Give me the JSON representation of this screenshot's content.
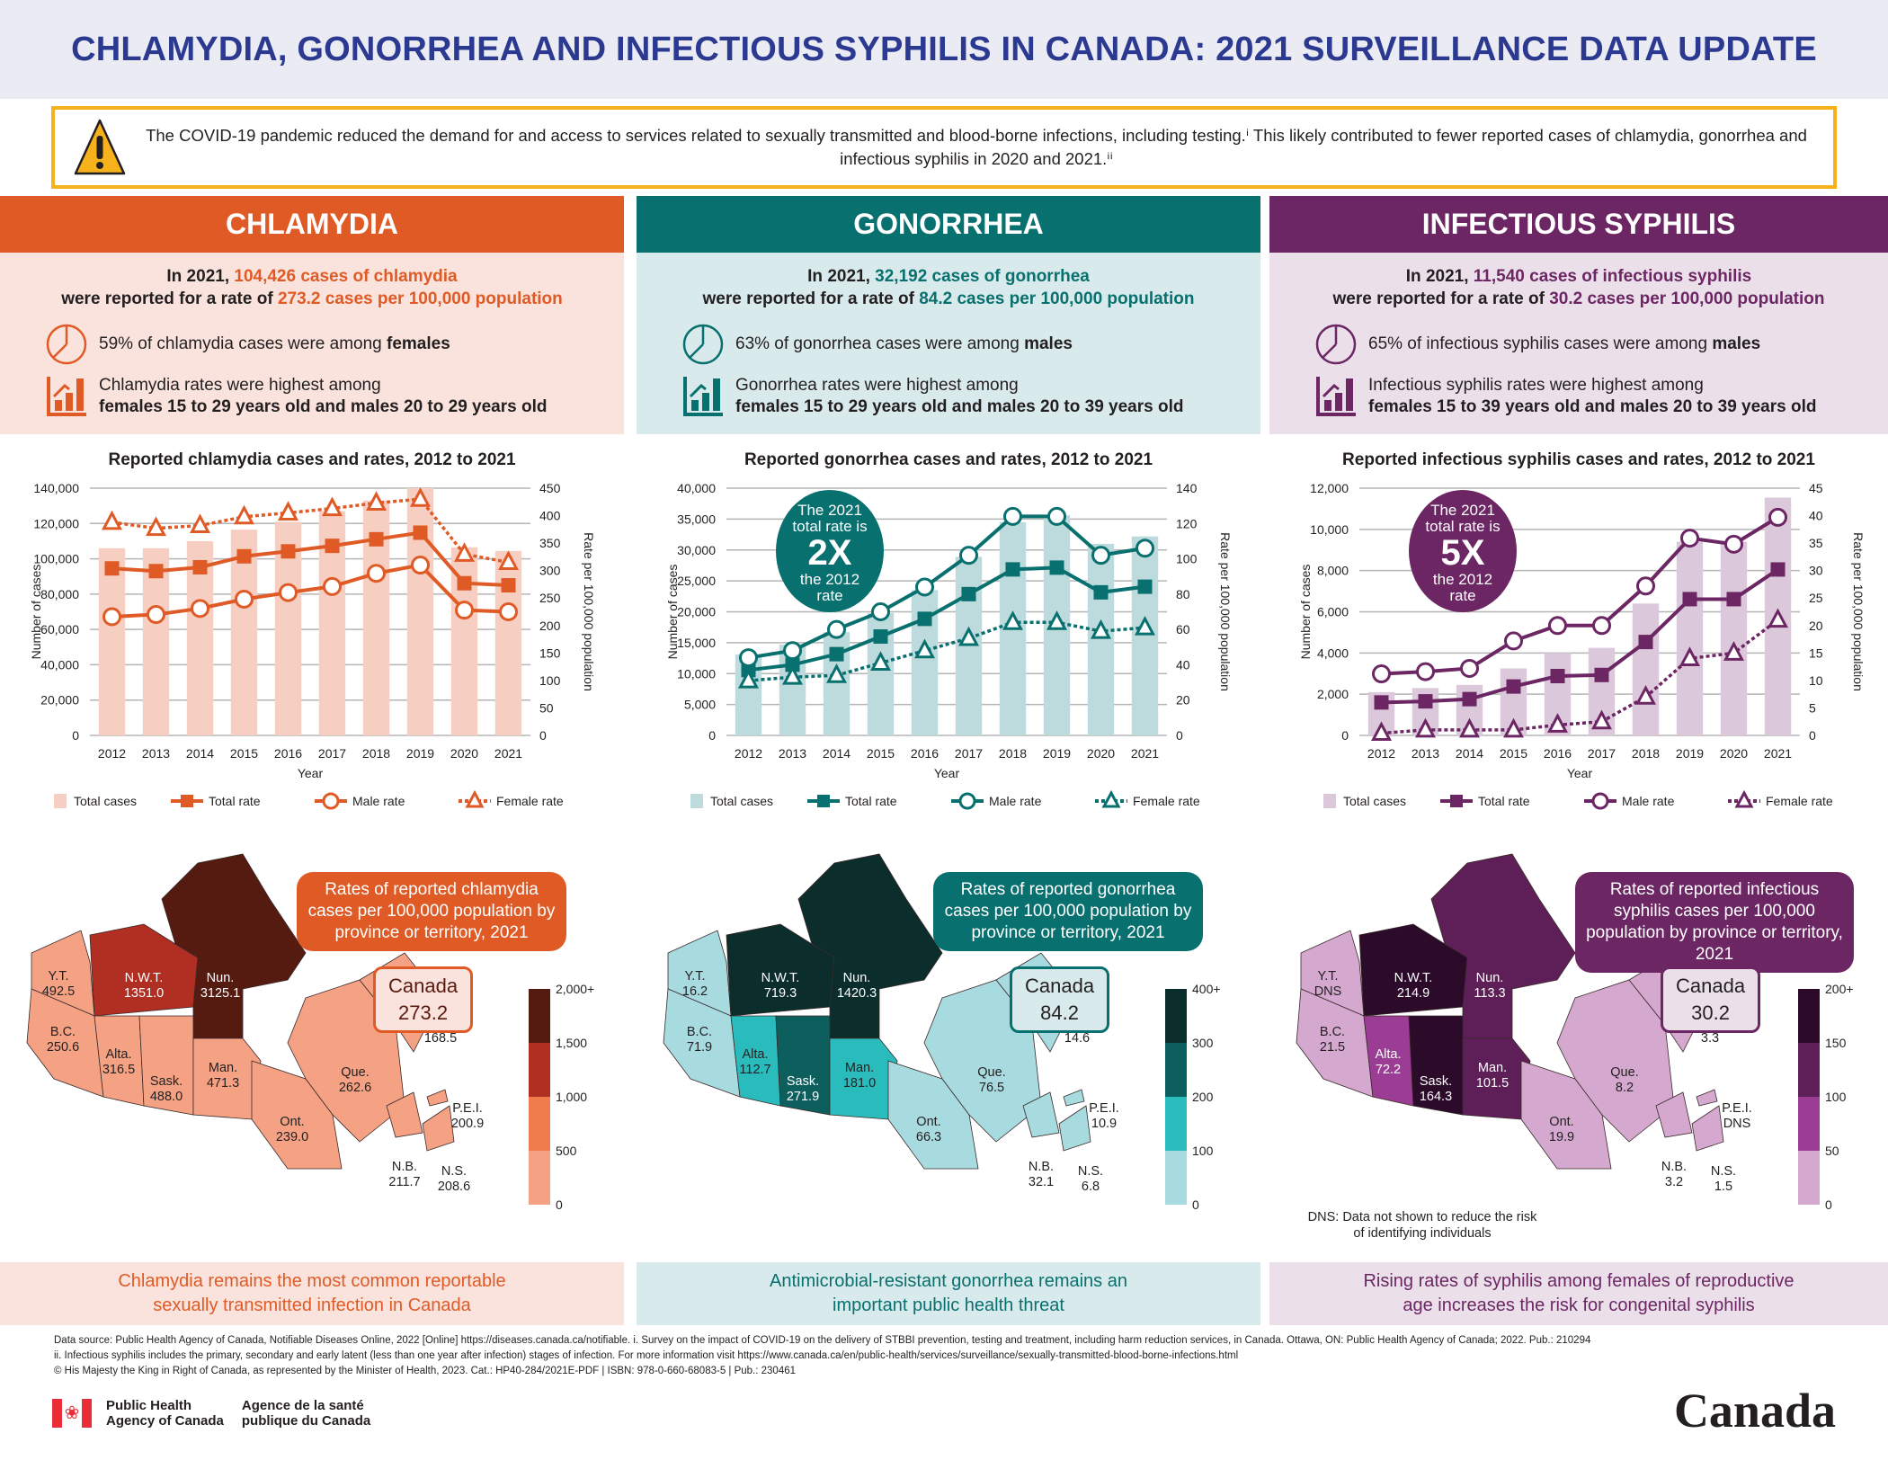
{
  "title": "CHLAMYDIA, GONORRHEA AND INFECTIOUS SYPHILIS IN CANADA: 2021 SURVEILLANCE DATA UPDATE",
  "alert": {
    "icon": "warning-triangle-icon",
    "text": "The COVID-19 pandemic reduced the demand for and access to services related to sexually transmitted and blood-borne infections, including testing.ⁱ This likely contributed to fewer reported cases of chlamydia, gonorrhea and infectious syphilis in 2020 and 2021.ⁱⁱ"
  },
  "colors": {
    "chlamydia": {
      "main": "#e05a26",
      "light": "#f9e3dc",
      "bar": "#f6cfc2",
      "text": "#e05a26"
    },
    "gonorrhea": {
      "main": "#08706f",
      "light": "#d8eaeb",
      "bar": "#bddadd",
      "text": "#08706f"
    },
    "syphilis": {
      "main": "#6b2663",
      "light": "#ebe0ea",
      "bar": "#dcc8db",
      "text": "#6b2663"
    }
  },
  "panels": [
    {
      "key": "chlamydia",
      "header": "CHLAMYDIA",
      "lead_1_pre": "In 2021, ",
      "lead_1_hl": "104,426 cases of chlamydia",
      "lead_2_pre": "were reported for a rate of ",
      "lead_2_hl": "273.2 cases per 100,000 population",
      "stat_1_pre": "59% of chlamydia cases were among ",
      "stat_1_bold": "females",
      "stat_2_line1": "Chlamydia rates were highest among",
      "stat_2_line2": "females 15 to 29 years old and males 20 to 29 years old",
      "closing": "Chlamydia remains the most common reportable sexually transmitted infection in Canada",
      "map": {
        "title": "Rates of reported chlamydia cases per 100,000 population by province or territory, 2021",
        "canada_label": "Canada",
        "canada_value": "273.2",
        "legend_ticks": [
          "2,000+",
          "1,500",
          "1,000",
          "500",
          "0"
        ],
        "legend_colors": [
          "#551a10",
          "#b02e22",
          "#ee7c4c",
          "#f4a283"
        ],
        "provinces": [
          {
            "abbr": "Y.T.",
            "value": "492.5",
            "band": 3
          },
          {
            "abbr": "N.W.T.",
            "value": "1351.0",
            "band": 1
          },
          {
            "abbr": "Nun.",
            "value": "3125.1",
            "band": 0
          },
          {
            "abbr": "B.C.",
            "value": "250.6",
            "band": 3
          },
          {
            "abbr": "Alta.",
            "value": "316.5",
            "band": 3
          },
          {
            "abbr": "Sask.",
            "value": "488.0",
            "band": 3
          },
          {
            "abbr": "Man.",
            "value": "471.3",
            "band": 3
          },
          {
            "abbr": "Ont.",
            "value": "239.0",
            "band": 3
          },
          {
            "abbr": "Que.",
            "value": "262.6",
            "band": 3
          },
          {
            "abbr": "N.L.",
            "value": "168.5",
            "band": 3
          },
          {
            "abbr": "N.B.",
            "value": "211.7",
            "band": 3
          },
          {
            "abbr": "N.S.",
            "value": "208.6",
            "band": 3
          },
          {
            "abbr": "P.E.I.",
            "value": "200.9",
            "band": 3
          }
        ]
      }
    },
    {
      "key": "gonorrhea",
      "header": "GONORRHEA",
      "lead_1_pre": "In 2021, ",
      "lead_1_hl": "32,192 cases of gonorrhea",
      "lead_2_pre": "were reported for a rate of ",
      "lead_2_hl": "84.2 cases per 100,000 population",
      "stat_1_pre": "63% of gonorrhea cases were among ",
      "stat_1_bold": "males",
      "stat_2_line1": "Gonorrhea rates were highest among",
      "stat_2_line2": "females 15 to 29 years old and males 20 to 39 years old",
      "closing": "Antimicrobial-resistant gonorrhea remains an important public health threat",
      "callout": {
        "line1": "The 2021",
        "line2": "total rate is",
        "big": "2X",
        "line3": "the 2012",
        "line4": "rate"
      },
      "map": {
        "title": "Rates of reported gonorrhea cases per 100,000 population by province or territory, 2021",
        "canada_label": "Canada",
        "canada_value": "84.2",
        "legend_ticks": [
          "400+",
          "300",
          "200",
          "100",
          "0"
        ],
        "legend_colors": [
          "#0b2d2c",
          "#0d5f5d",
          "#2abcbd",
          "#a8dbe0"
        ],
        "provinces": [
          {
            "abbr": "Y.T.",
            "value": "16.2",
            "band": 3
          },
          {
            "abbr": "N.W.T.",
            "value": "719.3",
            "band": 0
          },
          {
            "abbr": "Nun.",
            "value": "1420.3",
            "band": 0
          },
          {
            "abbr": "B.C.",
            "value": "71.9",
            "band": 3
          },
          {
            "abbr": "Alta.",
            "value": "112.7",
            "band": 2
          },
          {
            "abbr": "Sask.",
            "value": "271.9",
            "band": 1
          },
          {
            "abbr": "Man.",
            "value": "181.0",
            "band": 2
          },
          {
            "abbr": "Ont.",
            "value": "66.3",
            "band": 3
          },
          {
            "abbr": "Que.",
            "value": "76.5",
            "band": 3
          },
          {
            "abbr": "N.L.",
            "value": "14.6",
            "band": 3
          },
          {
            "abbr": "N.B.",
            "value": "32.1",
            "band": 3
          },
          {
            "abbr": "N.S.",
            "value": "6.8",
            "band": 3
          },
          {
            "abbr": "P.E.I.",
            "value": "10.9",
            "band": 3
          }
        ]
      }
    },
    {
      "key": "syphilis",
      "header": "INFECTIOUS SYPHILIS",
      "lead_1_pre": "In 2021, ",
      "lead_1_hl": "11,540 cases of infectious syphilis",
      "lead_2_pre": "were reported for a rate of ",
      "lead_2_hl": "30.2 cases per 100,000 population",
      "stat_1_pre": "65% of infectious syphilis cases were among ",
      "stat_1_bold": "males",
      "stat_2_line1": "Infectious syphilis rates were highest among",
      "stat_2_line2": "females 15 to 39 years old and males 20 to 39 years old",
      "closing": "Rising rates of syphilis among females of reproductive age increases the risk for congenital syphilis",
      "callout": {
        "line1": "The 2021",
        "line2": "total rate is",
        "big": "5X",
        "line3": "the 2012",
        "line4": "rate"
      },
      "map": {
        "title": "Rates of reported infectious syphilis cases per 100,000 population by province or territory, 2021",
        "canada_label": "Canada",
        "canada_value": "30.2",
        "legend_ticks": [
          "200+",
          "150",
          "100",
          "50",
          "0"
        ],
        "legend_colors": [
          "#2b0a2a",
          "#5e1f59",
          "#9b3d95",
          "#d4a8cf"
        ],
        "dns_note": "DNS: Data not shown to reduce the risk of identifying individuals",
        "provinces": [
          {
            "abbr": "Y.T.",
            "value": "DNS",
            "band": 3
          },
          {
            "abbr": "N.W.T.",
            "value": "214.9",
            "band": 0
          },
          {
            "abbr": "Nun.",
            "value": "113.3",
            "band": 1
          },
          {
            "abbr": "B.C.",
            "value": "21.5",
            "band": 3
          },
          {
            "abbr": "Alta.",
            "value": "72.2",
            "band": 2
          },
          {
            "abbr": "Sask.",
            "value": "164.3",
            "band": 0
          },
          {
            "abbr": "Man.",
            "value": "101.5",
            "band": 1
          },
          {
            "abbr": "Ont.",
            "value": "19.9",
            "band": 3
          },
          {
            "abbr": "Que.",
            "value": "8.2",
            "band": 3
          },
          {
            "abbr": "N.L.",
            "value": "3.3",
            "band": 3
          },
          {
            "abbr": "N.B.",
            "value": "3.2",
            "band": 3
          },
          {
            "abbr": "N.S.",
            "value": "1.5",
            "band": 3
          },
          {
            "abbr": "P.E.I.",
            "value": "DNS",
            "band": 3
          }
        ]
      }
    }
  ],
  "chart_data": [
    {
      "type": "bar",
      "title": "Reported chlamydia cases and rates, 2012 to 2021",
      "xlabel": "Year",
      "ylabel": "Number of cases",
      "y2label": "Rate per 100,000 population",
      "categories": [
        "2012",
        "2013",
        "2014",
        "2015",
        "2016",
        "2017",
        "2018",
        "2019",
        "2020",
        "2021"
      ],
      "ylim": [
        0,
        140000
      ],
      "yticks": [
        0,
        20000,
        40000,
        60000,
        80000,
        100000,
        120000,
        140000
      ],
      "y2lim": [
        0,
        450
      ],
      "y2ticks": [
        0,
        50,
        100,
        150,
        200,
        250,
        300,
        350,
        400,
        450
      ],
      "grid": true,
      "legend": "bottom",
      "series": [
        {
          "name": "Total cases",
          "kind": "bar",
          "axis": "left",
          "values": [
            106000,
            106000,
            110000,
            116500,
            121000,
            127000,
            133000,
            140000,
            106500,
            104426
          ]
        },
        {
          "name": "Total rate",
          "kind": "line",
          "marker": "square",
          "axis": "right",
          "values": [
            304,
            299,
            306,
            326,
            335,
            345,
            357,
            369,
            277,
            273.2
          ]
        },
        {
          "name": "Male rate",
          "kind": "line",
          "marker": "circle",
          "axis": "right",
          "values": [
            216,
            220,
            231,
            248,
            260,
            271,
            295,
            310,
            228,
            225
          ]
        },
        {
          "name": "Female rate",
          "kind": "dotted",
          "marker": "triangle",
          "axis": "right",
          "values": [
            388,
            377,
            382,
            398,
            405,
            413,
            423,
            430,
            330,
            315
          ]
        }
      ]
    },
    {
      "type": "bar",
      "title": "Reported gonorrhea cases and rates, 2012 to 2021",
      "xlabel": "Year",
      "ylabel": "Number of cases",
      "y2label": "Rate per 100,000 population",
      "categories": [
        "2012",
        "2013",
        "2014",
        "2015",
        "2016",
        "2017",
        "2018",
        "2019",
        "2020",
        "2021"
      ],
      "ylim": [
        0,
        40000
      ],
      "yticks": [
        0,
        5000,
        10000,
        15000,
        20000,
        25000,
        30000,
        35000,
        40000
      ],
      "y2lim": [
        0,
        140
      ],
      "y2ticks": [
        0,
        20,
        40,
        60,
        80,
        100,
        120,
        140
      ],
      "grid": true,
      "legend": "bottom",
      "series": [
        {
          "name": "Total cases",
          "kind": "bar",
          "axis": "left",
          "values": [
            13100,
            14700,
            16700,
            19800,
            23500,
            28900,
            34500,
            35600,
            31000,
            32192
          ]
        },
        {
          "name": "Total rate",
          "kind": "line",
          "marker": "square",
          "axis": "right",
          "values": [
            37,
            40,
            46,
            56,
            66,
            80,
            94,
            95,
            81,
            84.2
          ]
        },
        {
          "name": "Male rate",
          "kind": "line",
          "marker": "circle",
          "axis": "right",
          "values": [
            44,
            48,
            60,
            70,
            84,
            102,
            124,
            124,
            102,
            106
          ]
        },
        {
          "name": "Female rate",
          "kind": "dotted",
          "marker": "triangle",
          "axis": "right",
          "values": [
            31,
            33,
            34,
            41,
            48,
            55,
            64,
            64,
            59,
            61
          ]
        }
      ]
    },
    {
      "type": "bar",
      "title": "Reported infectious syphilis cases and rates, 2012 to 2021",
      "xlabel": "Year",
      "ylabel": "Number of cases",
      "y2label": "Rate per 100,000 population",
      "categories": [
        "2012",
        "2013",
        "2014",
        "2015",
        "2016",
        "2017",
        "2018",
        "2019",
        "2020",
        "2021"
      ],
      "ylim": [
        0,
        12000
      ],
      "yticks": [
        0,
        2000,
        4000,
        6000,
        8000,
        10000,
        12000
      ],
      "y2lim": [
        0,
        45
      ],
      "y2ticks": [
        0,
        5,
        10,
        15,
        20,
        25,
        30,
        35,
        40,
        45
      ],
      "grid": true,
      "legend": "bottom",
      "series": [
        {
          "name": "Total cases",
          "kind": "bar",
          "axis": "left",
          "values": [
            2100,
            2300,
            2450,
            3250,
            4000,
            4250,
            6400,
            9400,
            9400,
            11540
          ]
        },
        {
          "name": "Total rate",
          "kind": "line",
          "marker": "square",
          "axis": "right",
          "values": [
            6.0,
            6.2,
            6.6,
            8.9,
            10.8,
            11.0,
            17.0,
            24.8,
            24.8,
            30.2
          ]
        },
        {
          "name": "Male rate",
          "kind": "line",
          "marker": "circle",
          "axis": "right",
          "values": [
            11.2,
            11.6,
            12.2,
            17.2,
            20.0,
            20.0,
            27.2,
            35.9,
            34.8,
            39.7
          ]
        },
        {
          "name": "Female rate",
          "kind": "dotted",
          "marker": "triangle",
          "axis": "right",
          "values": [
            0.4,
            1.0,
            1.0,
            1.0,
            1.9,
            2.5,
            7.0,
            14.0,
            15.0,
            21.0
          ]
        }
      ]
    }
  ],
  "footer": {
    "source_line": "Data source: Public Health Agency of Canada, Notifiable Diseases Online, 2022 [Online] https://diseases.canada.ca/notifiable. i. Survey on the impact of COVID-19 on the delivery of STBBI prevention, testing and treatment, including harm reduction services, in Canada. Ottawa, ON: Public Health Agency of Canada; 2022. Pub.: 210294",
    "note_line": "ii. Infectious syphilis includes the primary, secondary and early latent (less than one year after infection) stages of infection. For more information visit https://www.canada.ca/en/public-health/services/surveillance/sexually-transmitted-blood-borne-infections.html",
    "copyright_line": "© His Majesty the King in Right of Canada, as represented by the Minister of Health, 2023. Cat.: HP40-284/2021E-PDF | ISBN: 978-0-660-68083-5 | Pub.: 230461",
    "agency_en_1": "Public Health",
    "agency_en_2": "Agency of Canada",
    "agency_fr_1": "Agence de la santé",
    "agency_fr_2": "publique du Canada",
    "wordmark": "Canada"
  }
}
